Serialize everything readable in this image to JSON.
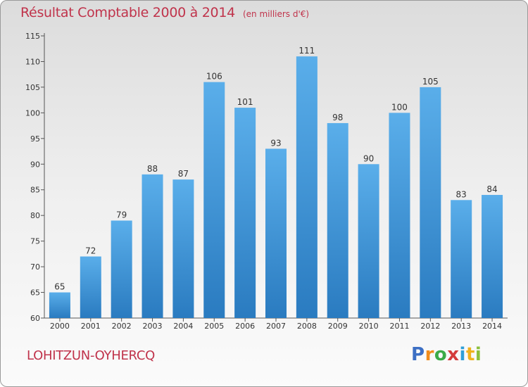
{
  "title": "Résultat Comptable 2000 à 2014",
  "subtitle": "(en milliers d'€)",
  "place": "LOHITZUN-OYHERCQ",
  "logo": {
    "letters": [
      "P",
      "r",
      "o",
      "x",
      "i",
      "t",
      "i"
    ],
    "colors": [
      "#3c6fc4",
      "#f08c1c",
      "#3bab48",
      "#d43c3c",
      "#2f9fd8",
      "#f0b21c",
      "#8bbf3c"
    ]
  },
  "colors": {
    "bar_light": "#5aaeea",
    "bar_dark": "#2a7bc0",
    "title": "#c0334b"
  },
  "chart_data": {
    "type": "bar",
    "title": "Résultat Comptable 2000 à 2014",
    "subtitle": "(en milliers d'€)",
    "categories": [
      "2000",
      "2001",
      "2002",
      "2003",
      "2004",
      "2005",
      "2006",
      "2007",
      "2008",
      "2009",
      "2010",
      "2011",
      "2012",
      "2013",
      "2014"
    ],
    "values": [
      65,
      72,
      79,
      88,
      87,
      106,
      101,
      93,
      111,
      98,
      90,
      100,
      105,
      83,
      84
    ],
    "ylim": [
      60,
      115
    ],
    "yticks": [
      60,
      65,
      70,
      75,
      80,
      85,
      90,
      95,
      100,
      105,
      110,
      115
    ],
    "xlabel": "",
    "ylabel": "",
    "grid": false
  }
}
